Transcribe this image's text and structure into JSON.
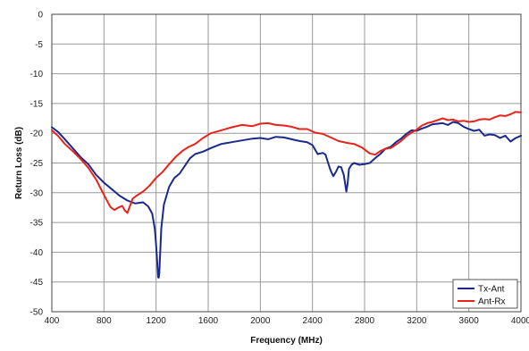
{
  "chart_data": {
    "type": "line",
    "title": "",
    "xlabel": "Frequency (MHz)",
    "ylabel": "Return Loss (dB)",
    "xlim": [
      400,
      4000
    ],
    "ylim": [
      -50,
      0
    ],
    "x_ticks": [
      400,
      800,
      1200,
      1600,
      2000,
      2400,
      2800,
      3200,
      3600,
      4000
    ],
    "y_ticks": [
      0,
      -5,
      -10,
      -15,
      -20,
      -25,
      -30,
      -35,
      -40,
      -45,
      -50
    ],
    "grid": true,
    "legend_position": "bottom-right",
    "series": [
      {
        "name": "Tx-Ant",
        "color": "#1a2a8c",
        "x": [
          400,
          450,
          500,
          560,
          620,
          680,
          740,
          800,
          860,
          920,
          980,
          1040,
          1100,
          1140,
          1170,
          1190,
          1200,
          1210,
          1215,
          1220,
          1225,
          1230,
          1240,
          1260,
          1300,
          1340,
          1380,
          1420,
          1460,
          1500,
          1560,
          1620,
          1700,
          1780,
          1860,
          1940,
          2000,
          2060,
          2120,
          2180,
          2240,
          2300,
          2360,
          2400,
          2440,
          2480,
          2500,
          2520,
          2540,
          2560,
          2580,
          2600,
          2620,
          2640,
          2660,
          2670,
          2680,
          2700,
          2720,
          2760,
          2800,
          2840,
          2880,
          2920,
          2960,
          3000,
          3040,
          3080,
          3120,
          3160,
          3200,
          3240,
          3280,
          3320,
          3360,
          3400,
          3440,
          3480,
          3520,
          3560,
          3600,
          3640,
          3680,
          3720,
          3760,
          3800,
          3840,
          3880,
          3920,
          3960,
          4000
        ],
        "values": [
          -19,
          -19.8,
          -21,
          -22.5,
          -24,
          -25.2,
          -27,
          -28.3,
          -29.4,
          -30.5,
          -31.3,
          -31.8,
          -31.6,
          -32.3,
          -33.5,
          -36,
          -38.8,
          -42,
          -44.2,
          -44.3,
          -43.5,
          -41,
          -36,
          -32,
          -29,
          -27.5,
          -26.8,
          -25.5,
          -24.2,
          -23.5,
          -23.1,
          -22.5,
          -21.8,
          -21.5,
          -21.2,
          -20.9,
          -20.8,
          -21,
          -20.6,
          -20.7,
          -21,
          -21.3,
          -21.5,
          -22,
          -23.5,
          -23.3,
          -23.6,
          -25,
          -26.3,
          -27.2,
          -26.5,
          -25.6,
          -25.7,
          -27,
          -29.8,
          -28.5,
          -26,
          -25.3,
          -25,
          -25.3,
          -25.2,
          -25,
          -24.2,
          -23.5,
          -22.6,
          -22.3,
          -21.5,
          -20.9,
          -20.1,
          -19.5,
          -19.6,
          -19.2,
          -18.9,
          -18.5,
          -18.4,
          -18.3,
          -18.6,
          -18.1,
          -18.3,
          -18.9,
          -19.3,
          -19.6,
          -19.4,
          -20.4,
          -20.2,
          -20.3,
          -20.8,
          -20.4,
          -21.4,
          -20.8,
          -20.4
        ]
      },
      {
        "name": "Ant-Rx",
        "color": "#e8231b",
        "x": [
          400,
          450,
          500,
          560,
          620,
          680,
          740,
          780,
          820,
          850,
          880,
          910,
          940,
          960,
          980,
          1000,
          1020,
          1050,
          1100,
          1150,
          1200,
          1250,
          1300,
          1350,
          1400,
          1450,
          1500,
          1560,
          1620,
          1700,
          1780,
          1860,
          1940,
          2000,
          2060,
          2120,
          2180,
          2240,
          2300,
          2360,
          2420,
          2480,
          2540,
          2600,
          2660,
          2720,
          2780,
          2840,
          2880,
          2920,
          2960,
          3000,
          3040,
          3080,
          3120,
          3160,
          3200,
          3240,
          3280,
          3320,
          3360,
          3400,
          3440,
          3480,
          3520,
          3560,
          3600,
          3640,
          3680,
          3720,
          3760,
          3800,
          3840,
          3880,
          3920,
          3960,
          4000
        ],
        "values": [
          -19.5,
          -20.5,
          -21.8,
          -23,
          -24.3,
          -25.8,
          -27.8,
          -29.5,
          -31.2,
          -32.4,
          -32.9,
          -32.5,
          -32.2,
          -33,
          -33.4,
          -32.2,
          -31,
          -30.5,
          -29.8,
          -28.8,
          -27.5,
          -26.5,
          -25.2,
          -24,
          -23,
          -22.3,
          -21.8,
          -20.8,
          -20,
          -19.5,
          -19,
          -18.6,
          -18.8,
          -18.4,
          -18.3,
          -18.6,
          -18.7,
          -18.9,
          -19.3,
          -19.3,
          -19.9,
          -20.1,
          -20.7,
          -21.3,
          -21.6,
          -21.8,
          -22.4,
          -23.4,
          -23.6,
          -23,
          -22.6,
          -22.5,
          -21.9,
          -21.3,
          -20.5,
          -19.9,
          -19.4,
          -18.7,
          -18.3,
          -18.1,
          -17.8,
          -17.5,
          -17.8,
          -17.7,
          -18,
          -17.9,
          -18.1,
          -18,
          -17.7,
          -17.6,
          -17.7,
          -17.3,
          -17,
          -17.1,
          -16.8,
          -16.4,
          -16.5
        ]
      }
    ]
  }
}
